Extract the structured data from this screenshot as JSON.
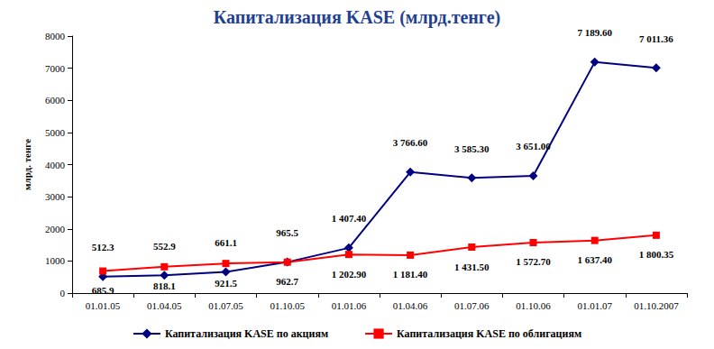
{
  "chart_data": {
    "type": "line",
    "title": "Капитализация KASE (млрд.тенге)",
    "y_label": "млрд. тенге",
    "categories": [
      "01.01.05",
      "01.04.05",
      "01.07.05",
      "01.10.05",
      "01.01.06",
      "01.04.06",
      "01.07.06",
      "01.10.06",
      "01.01.07",
      "01.10.2007"
    ],
    "series": [
      {
        "name": "Капитализация KASE по акциям",
        "color": "#000080",
        "marker": "diamond",
        "values": [
          512.3,
          552.9,
          661.1,
          965.5,
          1407.4,
          3766.6,
          3585.3,
          3651.0,
          7189.6,
          7011.36
        ],
        "value_labels": [
          "512.3",
          "552.9",
          "661.1",
          "965.5",
          "1 407.40",
          "3 766.60",
          "3 585.30",
          "3 651.00",
          "7 189.60",
          "7 011.36"
        ]
      },
      {
        "name": "Капитализация KASE по облигациям",
        "color": "#ff0000",
        "marker": "square",
        "values": [
          685.9,
          818.1,
          921.5,
          962.7,
          1202.9,
          1181.4,
          1431.5,
          1572.7,
          1637.4,
          1800.35
        ],
        "value_labels": [
          "685.9",
          "818.1",
          "921.5",
          "962.7",
          "1 202.90",
          "1 181.40",
          "1 431.50",
          "1 572.70",
          "1 637.40",
          "1 800.35"
        ]
      }
    ],
    "ylim": [
      0,
      8000
    ],
    "yticks": [
      0,
      1000,
      2000,
      3000,
      4000,
      5000,
      6000,
      7000,
      8000
    ],
    "grid": false,
    "legend": "bottom",
    "data_labels": true
  }
}
